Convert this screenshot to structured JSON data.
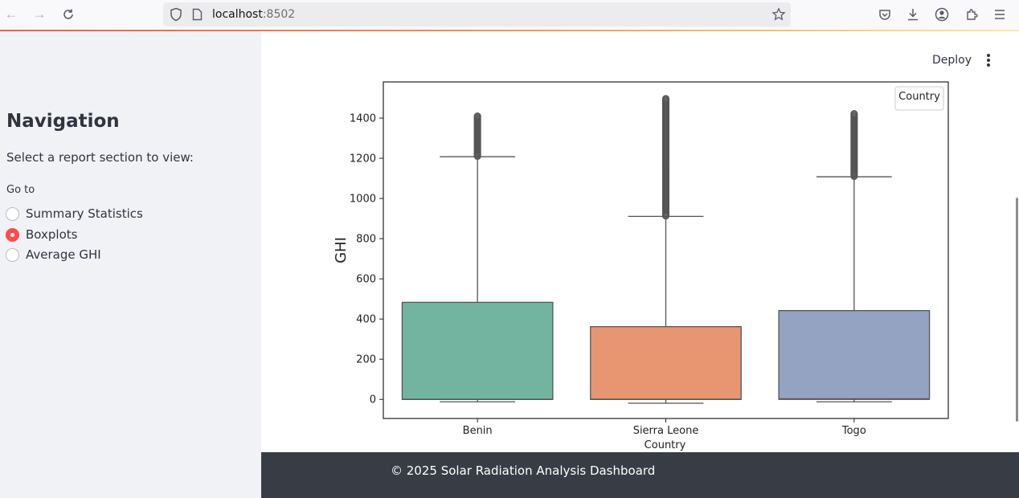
{
  "browser": {
    "url_host": "localhost",
    "url_port": ":8502"
  },
  "sidebar": {
    "title": "Navigation",
    "subtitle": "Select a report section to view:",
    "radio_label": "Go to",
    "options": [
      {
        "label": "Summary Statistics",
        "selected": false
      },
      {
        "label": "Boxplots",
        "selected": true
      },
      {
        "label": "Average GHI",
        "selected": false
      }
    ]
  },
  "header": {
    "deploy_label": "Deploy"
  },
  "colors": {
    "accent": "#ff4b4b",
    "benin": "#73b4a0",
    "sierra_leone": "#e89572",
    "togo": "#94a3c1"
  },
  "chart_data": {
    "type": "box",
    "title": "",
    "xlabel": "Country",
    "ylabel": "GHI",
    "legend_title": "Country",
    "legend_position": "top-right",
    "grid": false,
    "ylim": [
      -95,
      1580
    ],
    "yticks": [
      0,
      200,
      400,
      600,
      800,
      1000,
      1200,
      1400
    ],
    "categories": [
      "Benin",
      "Sierra Leone",
      "Togo"
    ],
    "series": [
      {
        "category": "Benin",
        "color": "#73b4a0",
        "whisker_low": -12,
        "q1": 0,
        "median": 0,
        "q3": 483,
        "whisker_high": 1208,
        "outliers_from": 1210,
        "outliers_to": 1413
      },
      {
        "category": "Sierra Leone",
        "color": "#e89572",
        "whisker_low": -19,
        "q1": 0,
        "median": 0,
        "q3": 362,
        "whisker_high": 911,
        "outliers_from": 913,
        "outliers_to": 1499
      },
      {
        "category": "Togo",
        "color": "#94a3c1",
        "whisker_low": -12,
        "q1": 0,
        "median": 2,
        "q3": 442,
        "whisker_high": 1108,
        "outliers_from": 1110,
        "outliers_to": 1424
      }
    ]
  },
  "footer": {
    "text": "© 2025 Solar Radiation Analysis Dashboard"
  }
}
